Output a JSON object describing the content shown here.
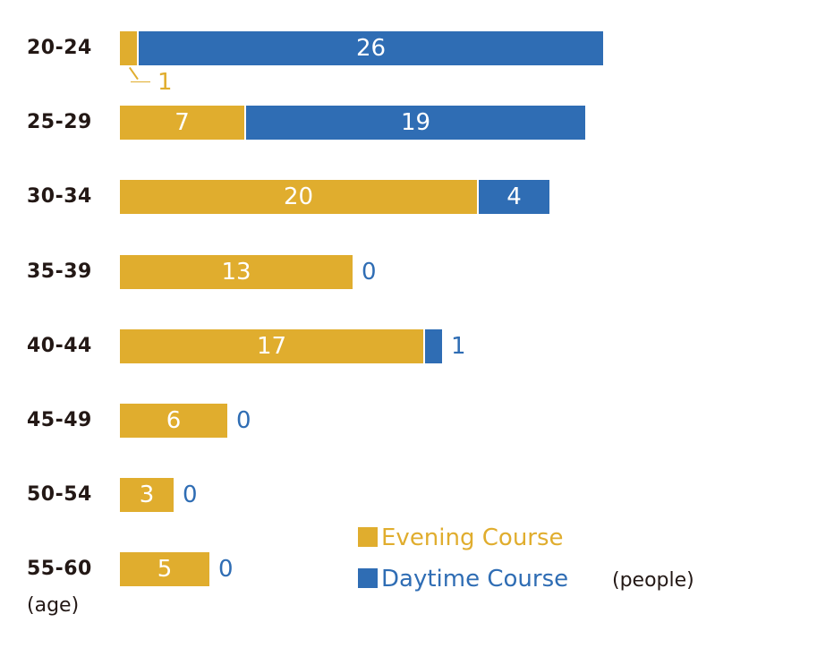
{
  "chart_data": {
    "type": "bar",
    "orientation": "horizontal",
    "stacked": true,
    "title": "",
    "xlabel": "(people)",
    "ylabel": "(age)",
    "categories": [
      "20-24",
      "25-29",
      "30-34",
      "35-39",
      "40-44",
      "45-49",
      "50-54",
      "55-60"
    ],
    "series": [
      {
        "name": "Evening Course",
        "color": "#e0ad2e",
        "values": [
          1,
          7,
          20,
          13,
          17,
          6,
          3,
          5
        ]
      },
      {
        "name": "Daytime Course",
        "color": "#2f6db4",
        "values": [
          26,
          19,
          4,
          0,
          1,
          0,
          0,
          0
        ]
      }
    ],
    "grid": false,
    "legend_position": "bottom-right"
  },
  "labels": {
    "rows": [
      {
        "age": "20-24",
        "ev": "1",
        "dt": "26"
      },
      {
        "age": "25-29",
        "ev": "7",
        "dt": "19"
      },
      {
        "age": "30-34",
        "ev": "20",
        "dt": "4"
      },
      {
        "age": "35-39",
        "ev": "13",
        "dt": "0"
      },
      {
        "age": "40-44",
        "ev": "17",
        "dt": "1"
      },
      {
        "age": "45-49",
        "ev": "6",
        "dt": "0"
      },
      {
        "age": "50-54",
        "ev": "3",
        "dt": "0"
      },
      {
        "age": "55-60",
        "ev": "5",
        "dt": "0"
      }
    ],
    "age_unit": "(age)",
    "people_unit": "(people)",
    "legend_evening": "Evening Course",
    "legend_daytime": "Daytime Course"
  }
}
